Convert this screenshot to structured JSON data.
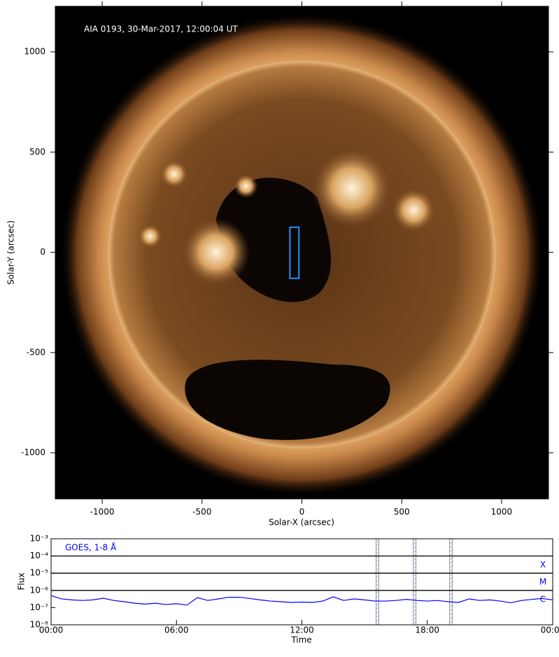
{
  "chart_data": [
    {
      "type": "image",
      "annotation": "AIA 0193, 30-Mar-2017, 12:00:04 UT",
      "xlabel": "Solar-X (arcsec)",
      "ylabel": "Solar-Y (arcsec)",
      "xlim": [
        -1235,
        1235
      ],
      "ylim": [
        -1230,
        1227
      ],
      "xticks": [
        -1000,
        -500,
        0,
        500,
        1000
      ],
      "yticks": [
        -1000,
        -500,
        0,
        500,
        1000
      ],
      "box": {
        "color": "#1e90ff",
        "x": [
          -60,
          -15
        ],
        "y": [
          -130,
          125
        ]
      }
    },
    {
      "type": "line",
      "annotation": "GOES, 1-8 Å",
      "xlabel": "Time",
      "ylabel": "Flux",
      "log_scale": true,
      "xlim": [
        0,
        24
      ],
      "xticks": [
        {
          "value": 0,
          "label": "00:00"
        },
        {
          "value": 6,
          "label": "06:00"
        },
        {
          "value": 12,
          "label": "12:00"
        },
        {
          "value": 18,
          "label": "18:00"
        },
        {
          "value": 24,
          "label": "00:00"
        }
      ],
      "ylim": [
        1e-08,
        0.001
      ],
      "yticks": [
        {
          "value": 1e-08,
          "label": "10⁻⁸"
        },
        {
          "value": 1e-07,
          "label": "10⁻⁷"
        },
        {
          "value": 1e-06,
          "label": "10⁻⁶"
        },
        {
          "value": 1e-05,
          "label": "10⁻⁵"
        },
        {
          "value": 0.0001,
          "label": "10⁻⁴"
        },
        {
          "value": 0.001,
          "label": "10⁻³"
        }
      ],
      "flare_levels": [
        {
          "value": 0.0001,
          "label": "X"
        },
        {
          "value": 1e-05,
          "label": "M"
        },
        {
          "value": 1e-06,
          "label": "C"
        }
      ],
      "bands": [
        [
          15.55,
          15.68
        ],
        [
          17.33,
          17.46
        ],
        [
          19.07,
          19.2
        ]
      ],
      "x": [
        0,
        0.5,
        1,
        1.5,
        2,
        2.5,
        3,
        3.5,
        4,
        4.5,
        5,
        5.5,
        6,
        6.5,
        7,
        7.5,
        8,
        8.5,
        9,
        9.5,
        10,
        10.5,
        11,
        11.5,
        12,
        12.5,
        13,
        13.5,
        14,
        14.5,
        15,
        15.5,
        16,
        16.5,
        17,
        17.5,
        18,
        18.5,
        19,
        19.5,
        20,
        20.5,
        21,
        21.5,
        22,
        22.5,
        23,
        23.5,
        24
      ],
      "series": [
        {
          "name": "GOES, 1-8 Å",
          "color": "#0000ff",
          "values": [
            5e-07,
            3.2e-07,
            2.8e-07,
            2.6e-07,
            2.8e-07,
            3.5e-07,
            2.6e-07,
            2.2e-07,
            1.8e-07,
            1.6e-07,
            1.8e-07,
            1.5e-07,
            1.7e-07,
            1.4e-07,
            3.8e-07,
            2.6e-07,
            3.2e-07,
            4e-07,
            4e-07,
            3.4e-07,
            2.8e-07,
            2.4e-07,
            2.2e-07,
            2e-07,
            2.1e-07,
            2e-07,
            2.4e-07,
            4.2e-07,
            2.6e-07,
            3.2e-07,
            2.8e-07,
            2.4e-07,
            2.4e-07,
            2.6e-07,
            3e-07,
            2.6e-07,
            2.4e-07,
            2.6e-07,
            2.2e-07,
            2e-07,
            3.2e-07,
            2.6e-07,
            2.8e-07,
            2.4e-07,
            1.9e-07,
            2.6e-07,
            3e-07,
            3.4e-07,
            2.8e-07
          ]
        }
      ]
    }
  ]
}
